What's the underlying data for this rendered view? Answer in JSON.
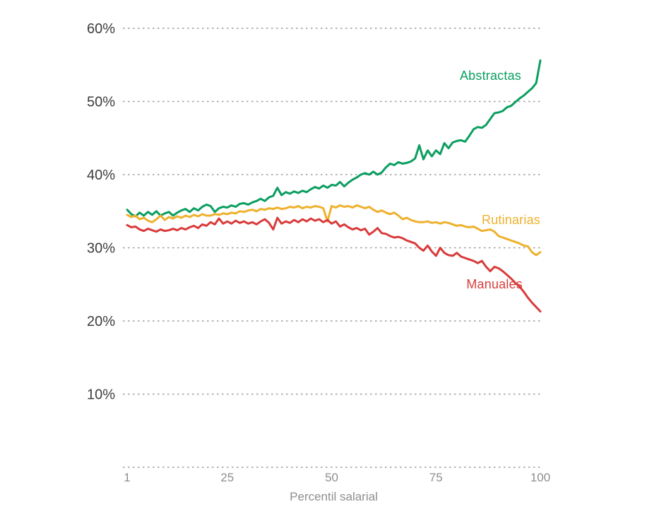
{
  "chart_data": {
    "type": "line",
    "title": "",
    "xlabel": "Percentil salarial",
    "ylabel": "",
    "x_range": [
      1,
      100
    ],
    "ylim": [
      0,
      60
    ],
    "grid": "dotted-horizontal",
    "legend_position": "inline-labels-right",
    "yticks": [
      {
        "value": 60,
        "label": "60%"
      },
      {
        "value": 50,
        "label": "50%"
      },
      {
        "value": 40,
        "label": "40%"
      },
      {
        "value": 30,
        "label": "30%"
      },
      {
        "value": 20,
        "label": "20%"
      },
      {
        "value": 10,
        "label": "10%"
      }
    ],
    "xticks": [
      {
        "value": 1,
        "label": "1"
      },
      {
        "value": 25,
        "label": "25"
      },
      {
        "value": 50,
        "label": "50"
      },
      {
        "value": 75,
        "label": "75"
      },
      {
        "value": 100,
        "label": "100"
      }
    ],
    "x": [
      1,
      2,
      3,
      4,
      5,
      6,
      7,
      8,
      9,
      10,
      11,
      12,
      13,
      14,
      15,
      16,
      17,
      18,
      19,
      20,
      21,
      22,
      23,
      24,
      25,
      26,
      27,
      28,
      29,
      30,
      31,
      32,
      33,
      34,
      35,
      36,
      37,
      38,
      39,
      40,
      41,
      42,
      43,
      44,
      45,
      46,
      47,
      48,
      49,
      50,
      51,
      52,
      53,
      54,
      55,
      56,
      57,
      58,
      59,
      60,
      61,
      62,
      63,
      64,
      65,
      66,
      67,
      68,
      69,
      70,
      71,
      72,
      73,
      74,
      75,
      76,
      77,
      78,
      79,
      80,
      81,
      82,
      83,
      84,
      85,
      86,
      87,
      88,
      89,
      90,
      91,
      92,
      93,
      94,
      95,
      96,
      97,
      98,
      99,
      100
    ],
    "series": [
      {
        "id": "abstractas",
        "name": "Abstractas",
        "color": "#0b9e60",
        "values": [
          35.2,
          34.6,
          34.3,
          34.8,
          34.4,
          34.9,
          34.5,
          35.0,
          34.4,
          34.7,
          34.9,
          34.4,
          34.8,
          35.1,
          35.3,
          34.9,
          35.4,
          35.1,
          35.6,
          35.9,
          35.7,
          34.9,
          35.4,
          35.6,
          35.5,
          35.8,
          35.6,
          36.0,
          36.1,
          35.9,
          36.2,
          36.4,
          36.7,
          36.4,
          36.9,
          37.1,
          38.2,
          37.2,
          37.6,
          37.4,
          37.7,
          37.5,
          37.8,
          37.6,
          38.0,
          38.3,
          38.1,
          38.5,
          38.2,
          38.6,
          38.5,
          39.0,
          38.4,
          38.9,
          39.3,
          39.6,
          40.0,
          40.2,
          40.0,
          40.4,
          40.0,
          40.3,
          41.0,
          41.5,
          41.3,
          41.7,
          41.5,
          41.6,
          41.8,
          42.2,
          44.0,
          42.1,
          43.3,
          42.5,
          43.3,
          42.8,
          44.3,
          43.6,
          44.4,
          44.6,
          44.7,
          44.5,
          45.3,
          46.2,
          46.5,
          46.4,
          46.8,
          47.6,
          48.4,
          48.5,
          48.7,
          49.2,
          49.4,
          49.9,
          50.4,
          50.8,
          51.3,
          51.8,
          52.5,
          55.6
        ]
      },
      {
        "id": "rutinarias",
        "name": "Rutinarias",
        "color": "#eeb12d",
        "values": [
          34.5,
          34.2,
          34.4,
          33.9,
          34.1,
          33.7,
          33.5,
          33.9,
          34.4,
          33.8,
          34.2,
          34.0,
          34.3,
          34.1,
          34.4,
          34.2,
          34.5,
          34.3,
          34.6,
          34.4,
          34.4,
          34.6,
          34.5,
          34.7,
          34.6,
          34.8,
          34.7,
          35.0,
          34.9,
          35.1,
          35.2,
          35.0,
          35.3,
          35.2,
          35.4,
          35.3,
          35.5,
          35.3,
          35.4,
          35.6,
          35.5,
          35.7,
          35.4,
          35.6,
          35.5,
          35.7,
          35.6,
          35.4,
          33.6,
          35.7,
          35.5,
          35.8,
          35.6,
          35.7,
          35.5,
          35.8,
          35.6,
          35.4,
          35.6,
          35.2,
          34.9,
          35.1,
          34.8,
          34.6,
          34.8,
          34.4,
          33.9,
          34.1,
          33.8,
          33.6,
          33.5,
          33.5,
          33.6,
          33.4,
          33.5,
          33.3,
          33.5,
          33.4,
          33.2,
          33.0,
          33.1,
          32.9,
          32.8,
          32.9,
          32.6,
          32.3,
          32.4,
          32.5,
          32.2,
          31.6,
          31.4,
          31.2,
          31.0,
          30.8,
          30.6,
          30.3,
          30.2,
          29.4,
          29.0,
          29.4
        ]
      },
      {
        "id": "manuales",
        "name": "Manuales",
        "color": "#d93b3b",
        "values": [
          33.1,
          32.8,
          32.9,
          32.5,
          32.3,
          32.6,
          32.4,
          32.2,
          32.5,
          32.3,
          32.4,
          32.6,
          32.4,
          32.7,
          32.5,
          32.8,
          33.0,
          32.7,
          33.2,
          33.0,
          33.5,
          33.2,
          34.0,
          33.3,
          33.6,
          33.3,
          33.7,
          33.4,
          33.6,
          33.3,
          33.5,
          33.2,
          33.6,
          33.9,
          33.4,
          32.5,
          34.1,
          33.3,
          33.6,
          33.4,
          33.8,
          33.5,
          33.9,
          33.6,
          34.0,
          33.7,
          33.9,
          33.5,
          33.8,
          33.3,
          33.6,
          32.9,
          33.2,
          32.8,
          32.5,
          32.7,
          32.4,
          32.6,
          31.8,
          32.2,
          32.7,
          32.0,
          31.9,
          31.6,
          31.4,
          31.5,
          31.3,
          31.0,
          30.8,
          30.6,
          30.0,
          29.6,
          30.3,
          29.5,
          28.9,
          30.0,
          29.3,
          29.0,
          28.9,
          29.3,
          28.8,
          28.6,
          28.4,
          28.2,
          27.9,
          28.2,
          27.4,
          26.8,
          27.4,
          27.2,
          26.8,
          26.3,
          25.8,
          25.2,
          24.7,
          24.0,
          23.2,
          22.5,
          21.9,
          21.3
        ]
      }
    ],
    "colors": {
      "grid": "#9b9b9b",
      "ytick_text": "#3d3d3d",
      "xtick_text": "#8e8e8e",
      "background": "#ffffff"
    }
  }
}
